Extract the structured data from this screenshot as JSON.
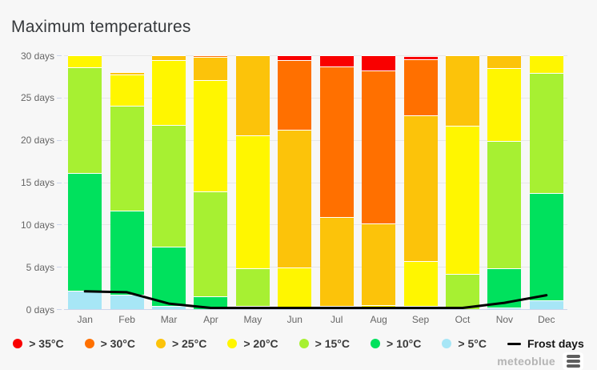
{
  "title": "Maximum temperatures",
  "chart_data": {
    "type": "bar",
    "stacked": true,
    "title": "Maximum temperatures",
    "categories": [
      "Jan",
      "Feb",
      "Mar",
      "Apr",
      "May",
      "Jun",
      "Jul",
      "Aug",
      "Sep",
      "Oct",
      "Nov",
      "Dec"
    ],
    "ylim": [
      0,
      30
    ],
    "yticks": [
      0,
      5,
      10,
      15,
      20,
      25,
      30
    ],
    "ytick_suffix": " days",
    "grid": true,
    "legend_position": "bottom",
    "series": [
      {
        "name": "> 35°C",
        "color": "#f90000",
        "values": [
          0,
          0,
          0,
          0,
          0,
          0.6,
          1.3,
          1.8,
          0.4,
          0,
          0,
          0
        ]
      },
      {
        "name": "> 30°C",
        "color": "#ff7000",
        "values": [
          0,
          0,
          0,
          0.2,
          0,
          8.2,
          17.8,
          18.1,
          6.6,
          0,
          0,
          0
        ]
      },
      {
        "name": "> 25°C",
        "color": "#fcc30a",
        "values": [
          0,
          0.3,
          0.6,
          2.7,
          9.5,
          16.3,
          10.5,
          9.6,
          17.2,
          8.3,
          1.5,
          0
        ]
      },
      {
        "name": "> 20°C",
        "color": "#fff600",
        "values": [
          1.4,
          3.7,
          7.6,
          13.2,
          15.7,
          4.9,
          0.4,
          0.5,
          5.3,
          17.5,
          8.6,
          2.1
        ]
      },
      {
        "name": "> 15°C",
        "color": "#a7f032",
        "values": [
          12.5,
          12.4,
          14.4,
          12.4,
          4.4,
          0,
          0,
          0,
          0.4,
          4.2,
          15.1,
          14.2
        ]
      },
      {
        "name": "> 10°C",
        "color": "#00e15d",
        "values": [
          13.9,
          9.9,
          7.0,
          1.5,
          0.4,
          0,
          0,
          0,
          0,
          0,
          4.6,
          12.7
        ]
      },
      {
        "name": "> 5°C",
        "color": "#a7e6f6",
        "values": [
          2.2,
          1.7,
          0.4,
          0,
          0,
          0,
          0,
          0,
          0,
          0,
          0.2,
          1.0
        ]
      }
    ],
    "line_series": {
      "name": "Frost days",
      "color": "#000000",
      "values": [
        2.1,
        2.0,
        0.65,
        0.1,
        0,
        0,
        0,
        0,
        0,
        0.1,
        0.75,
        1.65
      ]
    }
  },
  "brand": {
    "name": "meteoblue"
  }
}
